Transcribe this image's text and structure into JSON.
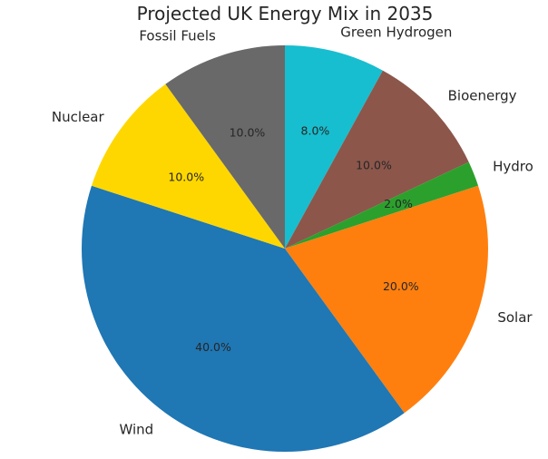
{
  "chart_data": {
    "type": "pie",
    "title": "Projected UK Energy Mix in 2035",
    "start_angle_deg": 90,
    "direction": "clockwise",
    "legend": "none",
    "slices": [
      {
        "label": "Green Hydrogen",
        "value": 8.0,
        "pct_label": "8.0%",
        "color": "#17becf"
      },
      {
        "label": "Bioenergy",
        "value": 10.0,
        "pct_label": "10.0%",
        "color": "#8c564b"
      },
      {
        "label": "Hydro",
        "value": 2.0,
        "pct_label": "2.0%",
        "color": "#2ca02c"
      },
      {
        "label": "Solar",
        "value": 20.0,
        "pct_label": "20.0%",
        "color": "#ff7f0e"
      },
      {
        "label": "Wind",
        "value": 40.0,
        "pct_label": "40.0%",
        "color": "#1f77b4"
      },
      {
        "label": "Nuclear",
        "value": 10.0,
        "pct_label": "10.0%",
        "color": "#ffd700"
      },
      {
        "label": "Fossil Fuels",
        "value": 10.0,
        "pct_label": "10.0%",
        "color": "#696969"
      }
    ]
  }
}
